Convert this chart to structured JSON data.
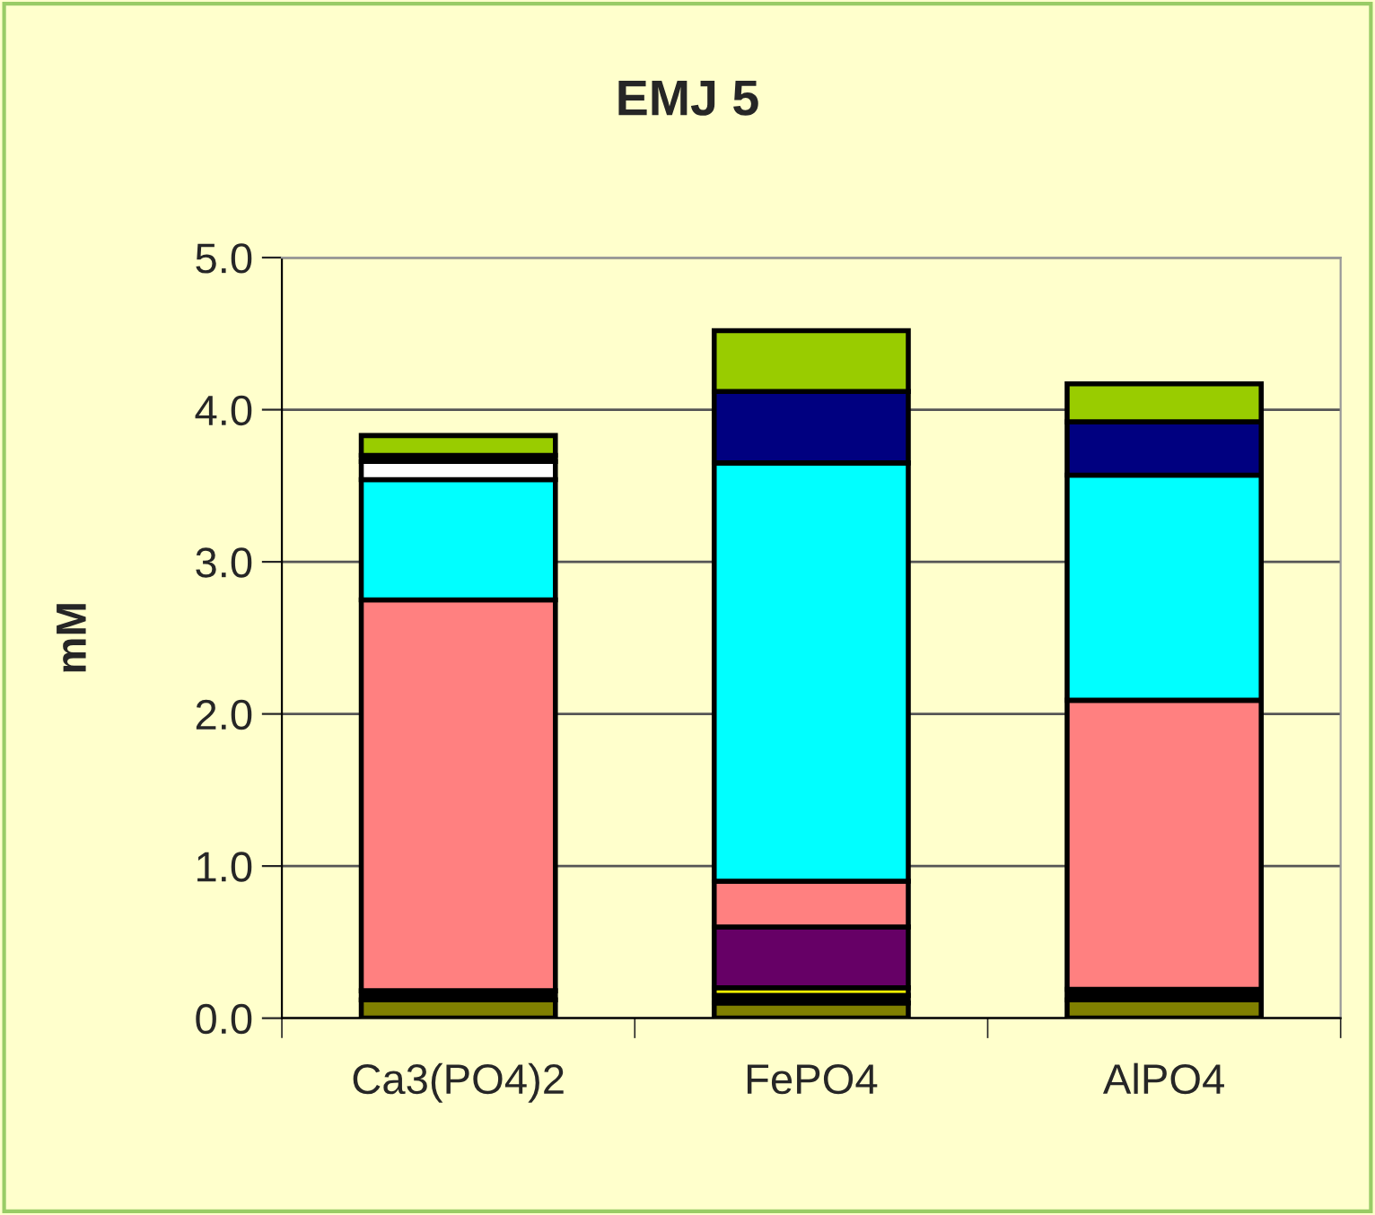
{
  "chart_data": {
    "type": "bar",
    "title": "EMJ 5",
    "ylabel": "mM",
    "categories": [
      "Ca3(PO4)2",
      "FePO4",
      "AlPO4"
    ],
    "stacked": true,
    "series": [
      {
        "color": "#808000",
        "values": [
          0.12,
          0.1,
          0.12
        ]
      },
      {
        "color": "#000000",
        "values": [
          0.06,
          0.05,
          0.07
        ]
      },
      {
        "color": "#ffff00",
        "values": [
          null,
          0.05,
          null
        ]
      },
      {
        "color": "#660066",
        "values": [
          null,
          0.4,
          null
        ]
      },
      {
        "color": "#ff8080",
        "values": [
          2.57,
          0.3,
          1.9
        ]
      },
      {
        "color": "#00ffff",
        "values": [
          0.79,
          2.75,
          1.48
        ]
      },
      {
        "color": "#000080",
        "values": [
          null,
          0.47,
          0.35
        ]
      },
      {
        "color": "#ffffff",
        "values": [
          0.12,
          null,
          null
        ]
      },
      {
        "color": "#000000",
        "values": [
          0.04,
          null,
          null
        ]
      },
      {
        "color": "#99cc00",
        "values": [
          0.13,
          0.4,
          0.25
        ]
      }
    ],
    "ylim": [
      0,
      5
    ],
    "yticks": [
      {
        "value": 0,
        "label": "0.0"
      },
      {
        "value": 1,
        "label": "1.0"
      },
      {
        "value": 2,
        "label": "2.0"
      },
      {
        "value": 3,
        "label": "3.0"
      },
      {
        "value": 4,
        "label": "4.0"
      },
      {
        "value": 5,
        "label": "5.0"
      }
    ],
    "grid": "y",
    "legend": false
  }
}
